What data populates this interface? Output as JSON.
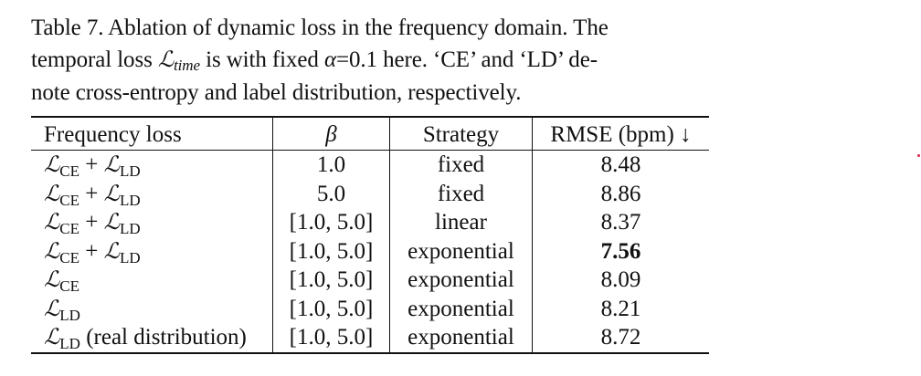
{
  "caption": {
    "line1": "Table 7. Ablation of dynamic loss in the frequency domain. The",
    "line2_a": "temporal loss",
    "line2_L": "ℒ",
    "line2_sub": "time",
    "line2_b": "is with fixed",
    "line2_alpha": "α",
    "line2_c": "=0.1 here. ‘CE’ and ‘LD’ de-",
    "line3": "note cross-entropy and label distribution, respectively."
  },
  "table": {
    "headers": {
      "col1": "Frequency loss",
      "col2": "β",
      "col3": "Strategy",
      "col4": "RMSE (bpm) ↓"
    },
    "rows": [
      {
        "loss": {
          "a": "ℒ",
          "a_sub": "CE",
          "plus": " + ",
          "b": "ℒ",
          "b_sub": "LD",
          "suffix": ""
        },
        "beta": "1.0",
        "strategy": "fixed",
        "rmse": "8.48",
        "best": false
      },
      {
        "loss": {
          "a": "ℒ",
          "a_sub": "CE",
          "plus": " + ",
          "b": "ℒ",
          "b_sub": "LD",
          "suffix": ""
        },
        "beta": "5.0",
        "strategy": "fixed",
        "rmse": "8.86",
        "best": false
      },
      {
        "loss": {
          "a": "ℒ",
          "a_sub": "CE",
          "plus": " + ",
          "b": "ℒ",
          "b_sub": "LD",
          "suffix": ""
        },
        "beta": "[1.0, 5.0]",
        "strategy": "linear",
        "rmse": "8.37",
        "best": false
      },
      {
        "loss": {
          "a": "ℒ",
          "a_sub": "CE",
          "plus": " + ",
          "b": "ℒ",
          "b_sub": "LD",
          "suffix": ""
        },
        "beta": "[1.0, 5.0]",
        "strategy": "exponential",
        "rmse": "7.56",
        "best": true
      },
      {
        "loss": {
          "a": "ℒ",
          "a_sub": "CE",
          "plus": "",
          "b": "",
          "b_sub": "",
          "suffix": ""
        },
        "beta": "[1.0, 5.0]",
        "strategy": "exponential",
        "rmse": "8.09",
        "best": false
      },
      {
        "loss": {
          "a": "ℒ",
          "a_sub": "LD",
          "plus": "",
          "b": "",
          "b_sub": "",
          "suffix": ""
        },
        "beta": "[1.0, 5.0]",
        "strategy": "exponential",
        "rmse": "8.21",
        "best": false
      },
      {
        "loss": {
          "a": "ℒ",
          "a_sub": "LD",
          "plus": "",
          "b": "",
          "b_sub": "",
          "suffix": " (real distribution)"
        },
        "beta": "[1.0, 5.0]",
        "strategy": "exponential",
        "rmse": "8.72",
        "best": false
      }
    ]
  },
  "colors": {
    "text": "#111111",
    "background": "#ffffff",
    "stray_mark": "#e0204a"
  }
}
